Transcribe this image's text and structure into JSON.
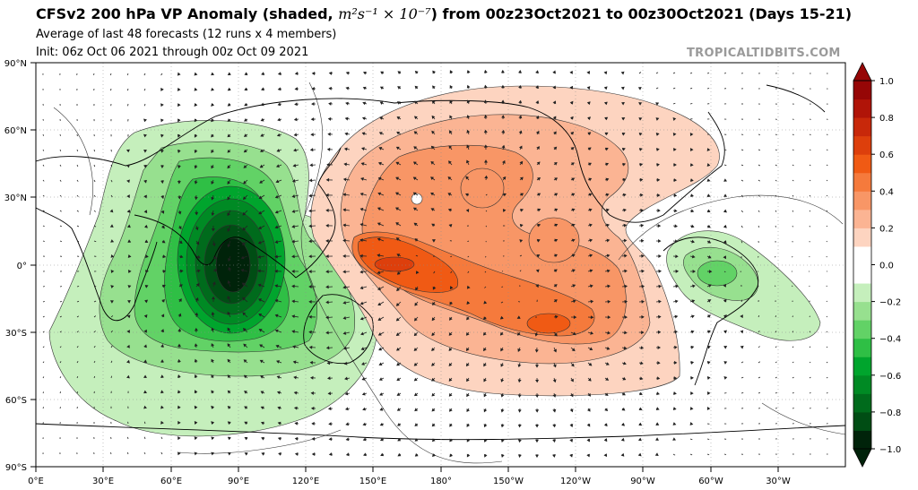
{
  "header": {
    "title_prefix": "CFSv2 200 hPa VP Anomaly (shaded, ",
    "title_units": "m²s⁻¹ × 10⁻⁷",
    "title_suffix": ") from 00z23Oct2021 to 00z30Oct2021 (Days 15-21)",
    "subtitle_1": "Average of last 48 forecasts (12 runs x 4 members)",
    "subtitle_2": "Init: 06z Oct 06 2021 through 00z Oct 09 2021",
    "watermark": "TROPICALTIDBITS.COM"
  },
  "axes": {
    "lat_ticks": [
      "90°N",
      "60°N",
      "30°N",
      "0°",
      "30°S",
      "60°S",
      "90°S"
    ],
    "lon_ticks": [
      "0°E",
      "30°E",
      "60°E",
      "90°E",
      "120°E",
      "150°E",
      "180°",
      "150°W",
      "120°W",
      "90°W",
      "60°W",
      "30°W"
    ]
  },
  "colorbar": {
    "tick_labels": [
      "1.0",
      "0.8",
      "0.6",
      "0.4",
      "0.2",
      "0.0",
      "−0.2",
      "−0.4",
      "−0.6",
      "−0.8",
      "−1.0"
    ],
    "colors": [
      "#00230a",
      "#004d14",
      "#006b1c",
      "#008a24",
      "#00a52d",
      "#2fbf45",
      "#62d266",
      "#97e08f",
      "#c5efbc",
      "#ffffff",
      "#ffffff",
      "#fdd4c0",
      "#fbb493",
      "#f89666",
      "#f57a3c",
      "#f05a14",
      "#dd3f0c",
      "#c8280a",
      "#b01408",
      "#960606"
    ]
  },
  "chart_data": {
    "type": "contour-map",
    "projection": "equirectangular",
    "lon_range": [
      "0°E",
      "360°"
    ],
    "lat_range": [
      "90°S",
      "90°N"
    ],
    "value_range": [
      -1.0,
      1.0
    ],
    "contour_interval": 0.1,
    "features": [
      {
        "sign": "negative",
        "center_lon": 90,
        "center_lat": 0,
        "min": -1.0
      },
      {
        "sign": "negative",
        "center_lon": 300,
        "center_lat": -10,
        "min": -0.4
      },
      {
        "sign": "positive",
        "center_lon": 165,
        "center_lat": 0,
        "max": 0.6
      },
      {
        "sign": "positive",
        "center_lon": 225,
        "center_lat": -25,
        "max": 0.6
      },
      {
        "sign": "positive",
        "center_lon": 195,
        "center_lat": 35,
        "max": 0.5
      },
      {
        "sign": "positive",
        "center_lon": 230,
        "center_lat": 10,
        "max": 0.5
      }
    ]
  }
}
